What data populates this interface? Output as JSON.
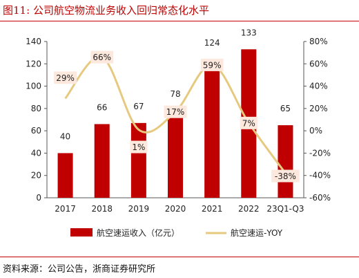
{
  "figure_label": "图11:",
  "figure_title": "公司航空物流业务收入回归常态化水平",
  "source": "资料来源：公司公告，浙商证券研究所",
  "colors": {
    "accent": "#c00000",
    "bar": "#c00000",
    "line": "#e6c97f",
    "label_box": "#fce8dd"
  },
  "chart_data": {
    "type": "bar",
    "categories": [
      "2017",
      "2018",
      "2019",
      "2020",
      "2021",
      "2022",
      "23Q1-Q3"
    ],
    "series": [
      {
        "name": "航空速运收入（亿元）",
        "type": "bar",
        "axis": "left",
        "values": [
          40,
          66,
          67,
          78,
          124,
          133,
          65
        ],
        "labels": [
          "40",
          "66",
          "67",
          "78",
          "124",
          "133",
          "65"
        ]
      },
      {
        "name": "航空速运-YOY",
        "type": "line",
        "axis": "right",
        "values": [
          29,
          66,
          1,
          17,
          59,
          7,
          -38
        ],
        "labels": [
          "29%",
          "66%",
          "1%",
          "17%",
          "59%",
          "7%",
          "-38%"
        ]
      }
    ],
    "y_left": {
      "min": 0,
      "max": 140,
      "ticks": [
        "0",
        "20",
        "40",
        "60",
        "80",
        "100",
        "120",
        "140"
      ]
    },
    "y_right": {
      "min": -60,
      "max": 80,
      "ticks": [
        "-60%",
        "-40%",
        "-20%",
        "0%",
        "20%",
        "40%",
        "60%",
        "80%"
      ]
    },
    "grid": false,
    "legend_position": "bottom"
  }
}
